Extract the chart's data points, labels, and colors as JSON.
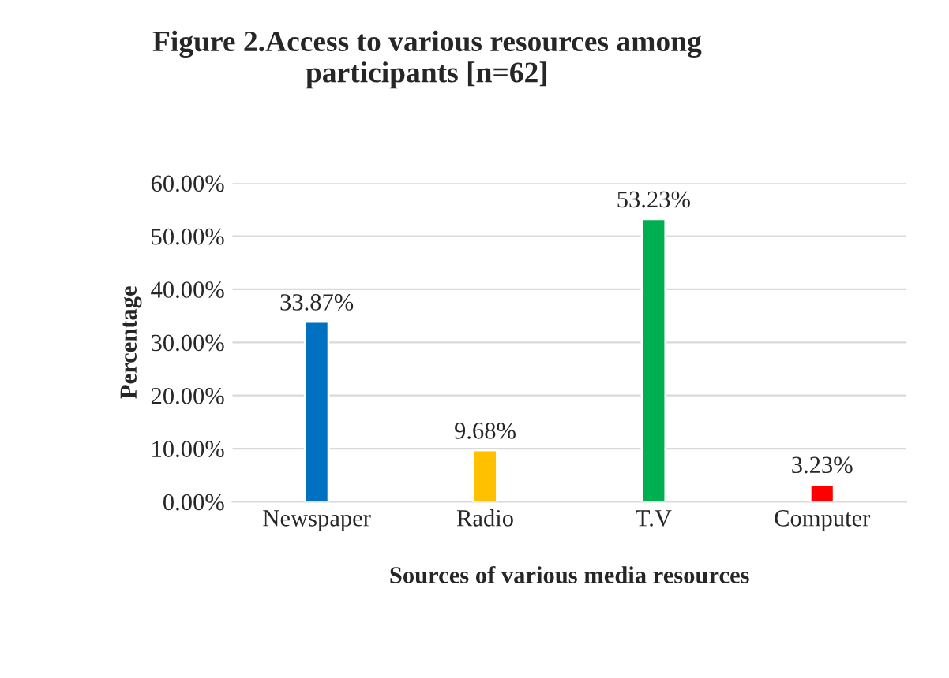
{
  "chart_data": {
    "type": "bar",
    "title": "Figure 2.Access to various resources among\nparticipants [n=62]",
    "xlabel": "Sources of various media resources",
    "ylabel": "Percentage",
    "categories": [
      "Newspaper",
      "Radio",
      "T.V",
      "Computer"
    ],
    "values": [
      33.87,
      9.68,
      53.23,
      3.23
    ],
    "colors": [
      "#0070c0",
      "#ffc000",
      "#00b050",
      "#ff0000"
    ],
    "value_labels": [
      "33.87%",
      "9.68%",
      "53.23%",
      "3.23%"
    ],
    "ylim": [
      0,
      60
    ],
    "yticks": [
      {
        "value": 0,
        "label": "0.00%"
      },
      {
        "value": 10,
        "label": "10.00%"
      },
      {
        "value": 20,
        "label": "20.00%"
      },
      {
        "value": 30,
        "label": "30.00%"
      },
      {
        "value": 40,
        "label": "40.00%"
      },
      {
        "value": 50,
        "label": "50.00%"
      },
      {
        "value": 60,
        "label": "60.00%"
      }
    ],
    "grid": "y",
    "legend": false
  }
}
